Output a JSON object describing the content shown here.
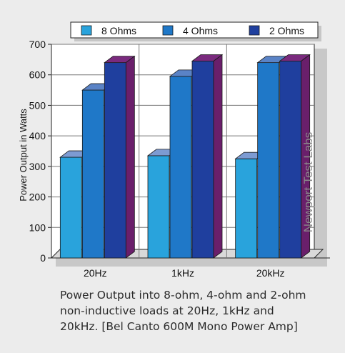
{
  "chart_data": {
    "type": "bar",
    "style": "3d-clustered",
    "categories": [
      "20Hz",
      "1kHz",
      "20kHz"
    ],
    "series": [
      {
        "name": "8 Ohms",
        "values": [
          330,
          335,
          325
        ],
        "color": "#29a3dc"
      },
      {
        "name": "4 Ohms",
        "values": [
          550,
          595,
          640
        ],
        "color": "#1f78c8"
      },
      {
        "name": "2 Ohms",
        "values": [
          640,
          645,
          645
        ],
        "color": "#1f3f9e"
      }
    ],
    "title": "",
    "xlabel": "",
    "ylabel": "Power Output in Watts",
    "ylim": [
      0,
      700
    ],
    "yticks": [
      0,
      100,
      200,
      300,
      400,
      500,
      600,
      700
    ],
    "grid": true,
    "legend_position": "top",
    "watermark": "Newport Test Labs",
    "colors": {
      "top_8": "#7d9bd2",
      "top_4": "#5a83c6",
      "side": "#6a1f6b",
      "top_2": "#7a2a7e",
      "plot_bg": "#ffffff",
      "frame_shadow": "#c8c8c8"
    }
  },
  "caption": {
    "lines": [
      "Power Output into 8-ohm, 4-ohm and 2-ohm",
      "non-inductive loads at 20Hz, 1kHz and",
      "20kHz. [Bel Canto 600M Mono Power Amp]"
    ]
  }
}
